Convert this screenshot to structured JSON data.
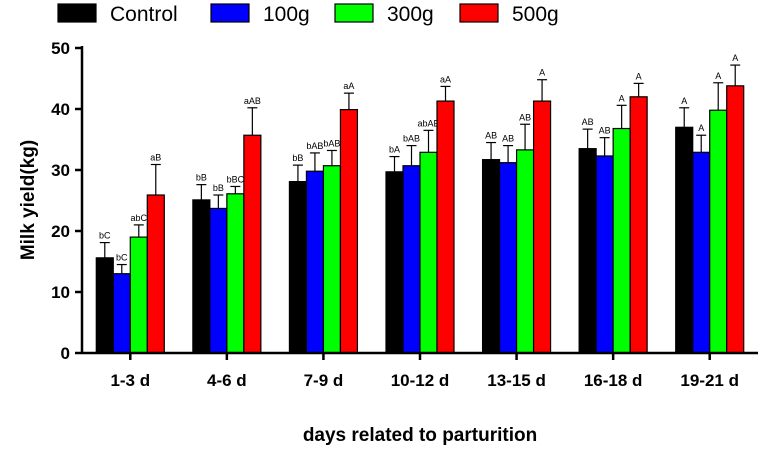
{
  "chart_data": {
    "type": "bar",
    "title": "",
    "xlabel": "days related to parturition",
    "ylabel": "Milk yield(kg)",
    "ylim": [
      0,
      50
    ],
    "yticks": [
      "0",
      "10",
      "20",
      "30",
      "40",
      "50"
    ],
    "categories": [
      "1-3 d",
      "4-6 d",
      "7-9 d",
      "10-12 d",
      "13-15 d",
      "16-18 d",
      "19-21 d"
    ],
    "legend_position": "top",
    "series": [
      {
        "name": "Control",
        "color": "#000000",
        "values": [
          15.6,
          25.1,
          28.1,
          29.7,
          31.7,
          33.5,
          37.0
        ],
        "errors": [
          2.5,
          2.5,
          2.7,
          2.5,
          2.8,
          3.2,
          3.2
        ],
        "labels": [
          "bC",
          "bB",
          "bB",
          "bA",
          "AB",
          "AB",
          "A"
        ]
      },
      {
        "name": "100g",
        "color": "#0000ff",
        "values": [
          13.0,
          23.7,
          29.8,
          30.7,
          31.2,
          32.3,
          32.9
        ],
        "errors": [
          1.5,
          2.2,
          3.0,
          3.3,
          2.8,
          3.0,
          2.8
        ],
        "labels": [
          "bC",
          "bB",
          "bAB",
          "bAB",
          "AB",
          "AB",
          "A"
        ]
      },
      {
        "name": "300g",
        "color": "#00ff00",
        "values": [
          19.0,
          26.1,
          30.7,
          32.9,
          33.3,
          36.8,
          39.8
        ],
        "errors": [
          2.0,
          1.2,
          2.5,
          3.6,
          4.2,
          3.8,
          4.5
        ],
        "labels": [
          "abC",
          "bBC",
          "bAB",
          "abAB",
          "AB",
          "A",
          "A"
        ]
      },
      {
        "name": "500g",
        "color": "#ff0000",
        "values": [
          25.9,
          35.7,
          39.9,
          41.3,
          41.3,
          42.0,
          43.8
        ],
        "errors": [
          5.0,
          4.5,
          2.7,
          2.4,
          3.5,
          2.2,
          3.4
        ],
        "labels": [
          "aB",
          "aAB",
          "aA",
          "aA",
          "A",
          "A",
          "A"
        ]
      }
    ]
  }
}
